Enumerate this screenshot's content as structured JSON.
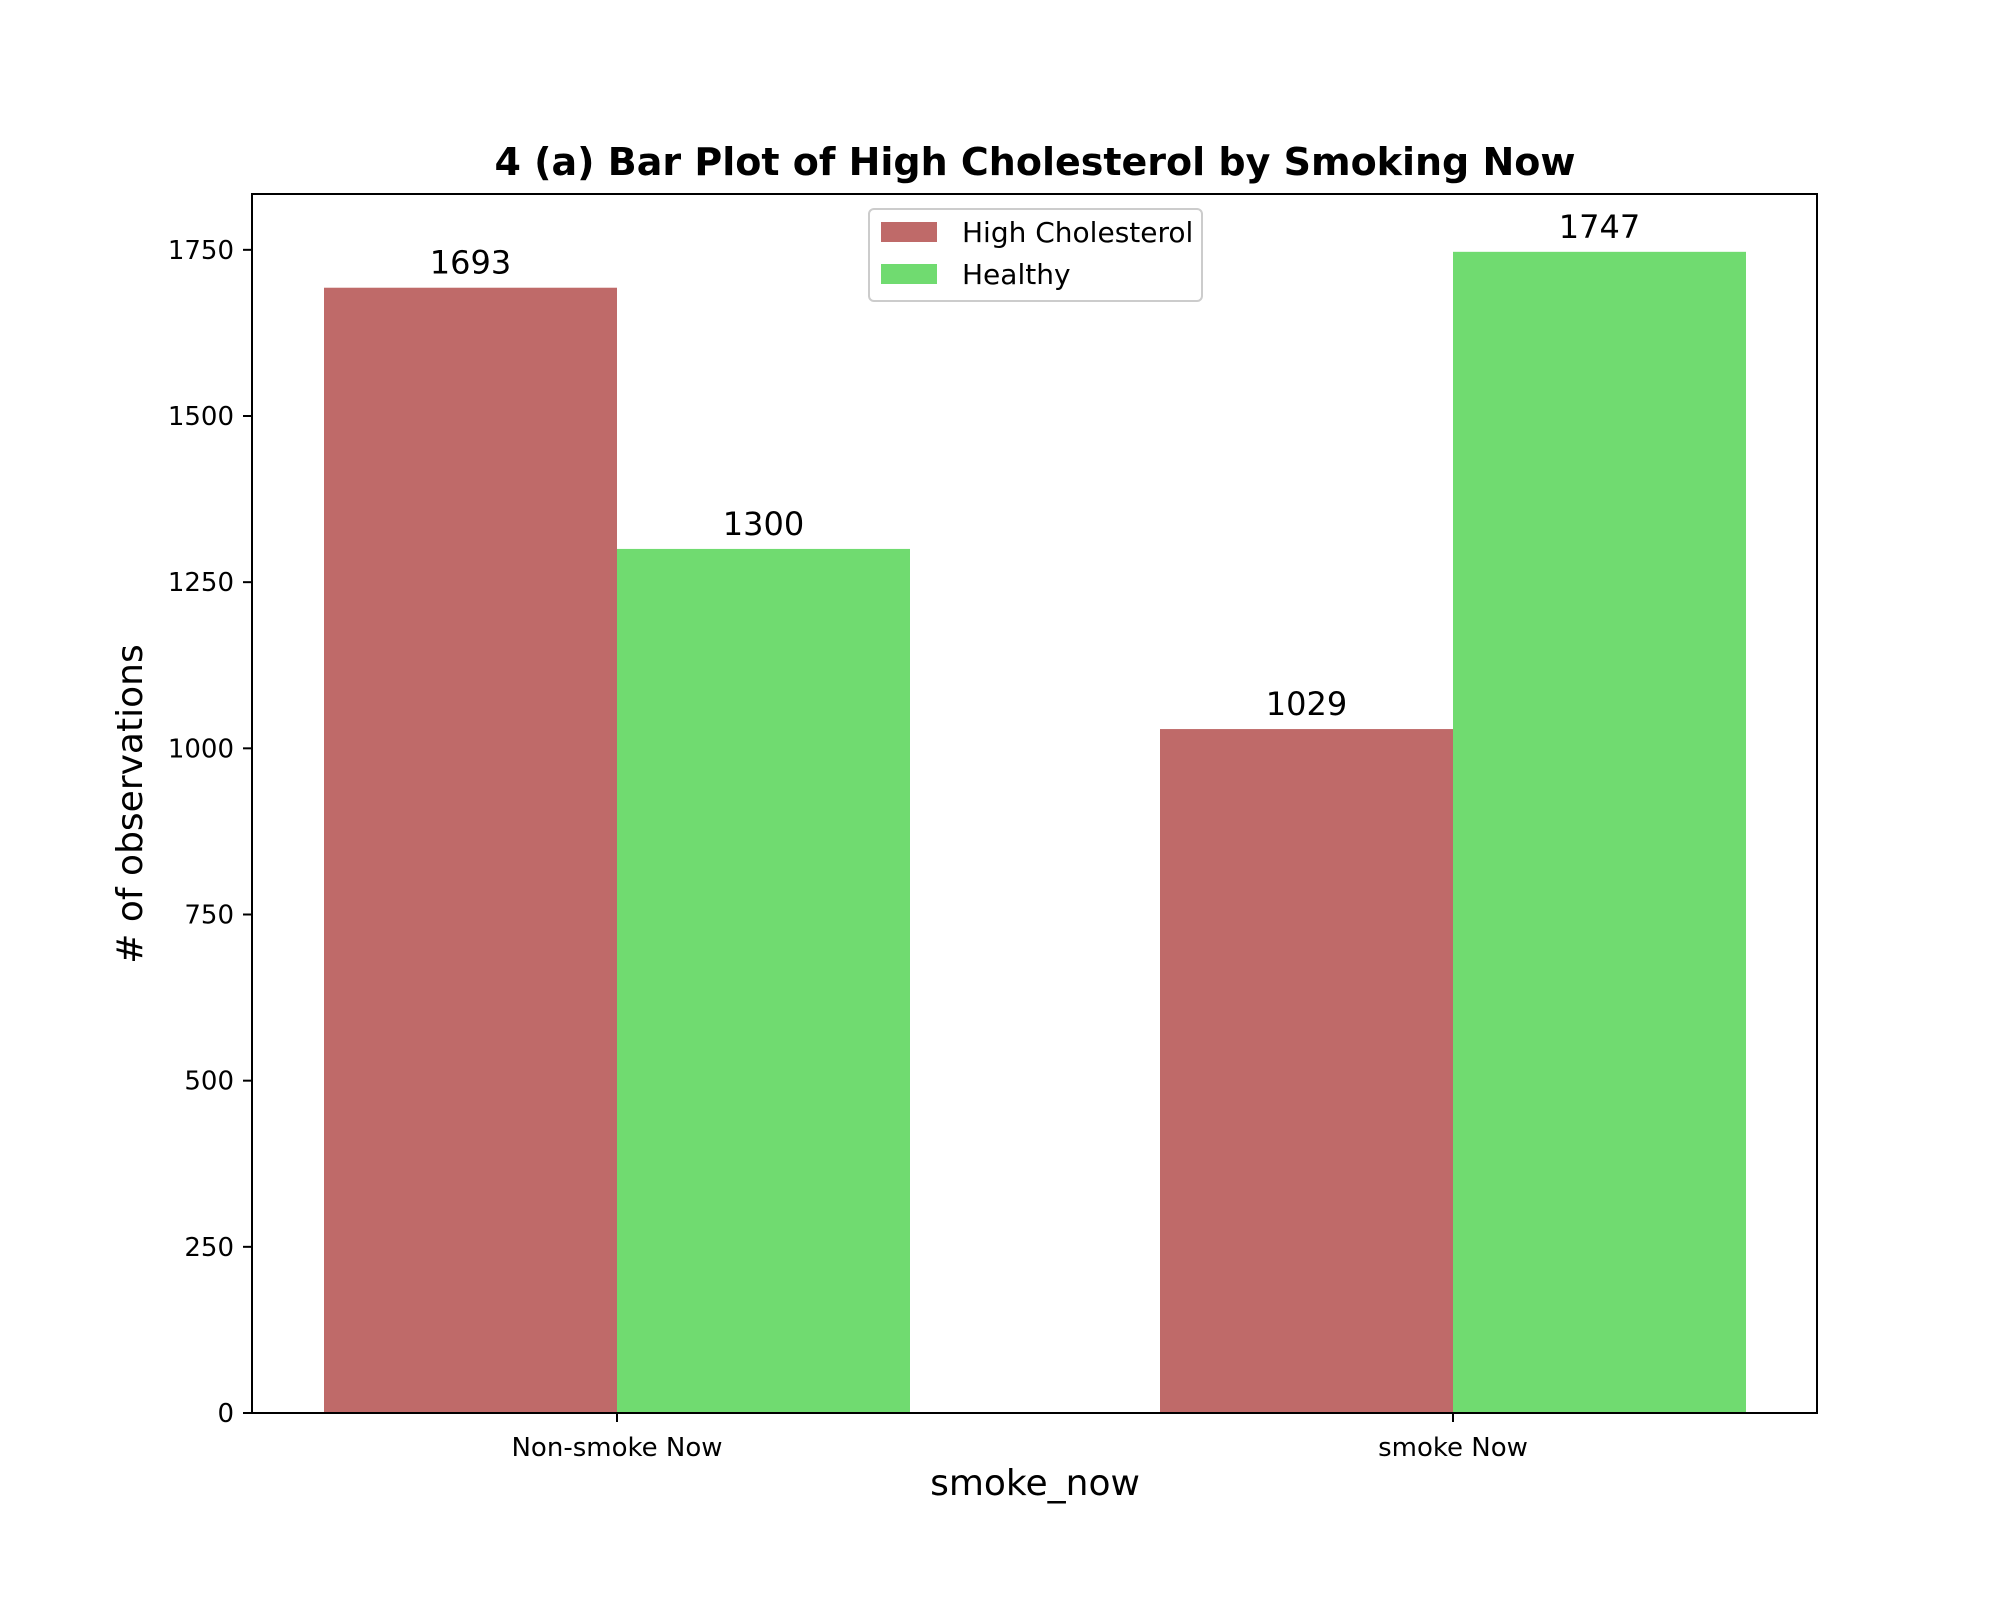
{
  "chart_data": {
    "type": "bar",
    "title": "4 (a) Bar Plot of High Cholesterol by Smoking Now",
    "xlabel": "smoke_now",
    "ylabel": "# of observations",
    "categories": [
      "Non-smoke Now",
      "smoke Now"
    ],
    "series": [
      {
        "name": "High Cholesterol",
        "values": [
          1693,
          1029
        ],
        "color": "#bf6a69"
      },
      {
        "name": "Healthy",
        "values": [
          1300,
          1747
        ],
        "color": "#70db70"
      }
    ],
    "ylim": [
      0,
      1834
    ],
    "yticks": [
      0,
      250,
      500,
      750,
      1000,
      1250,
      1500,
      1750
    ],
    "data_labels": true,
    "grid": false,
    "legend": "upper-center"
  }
}
